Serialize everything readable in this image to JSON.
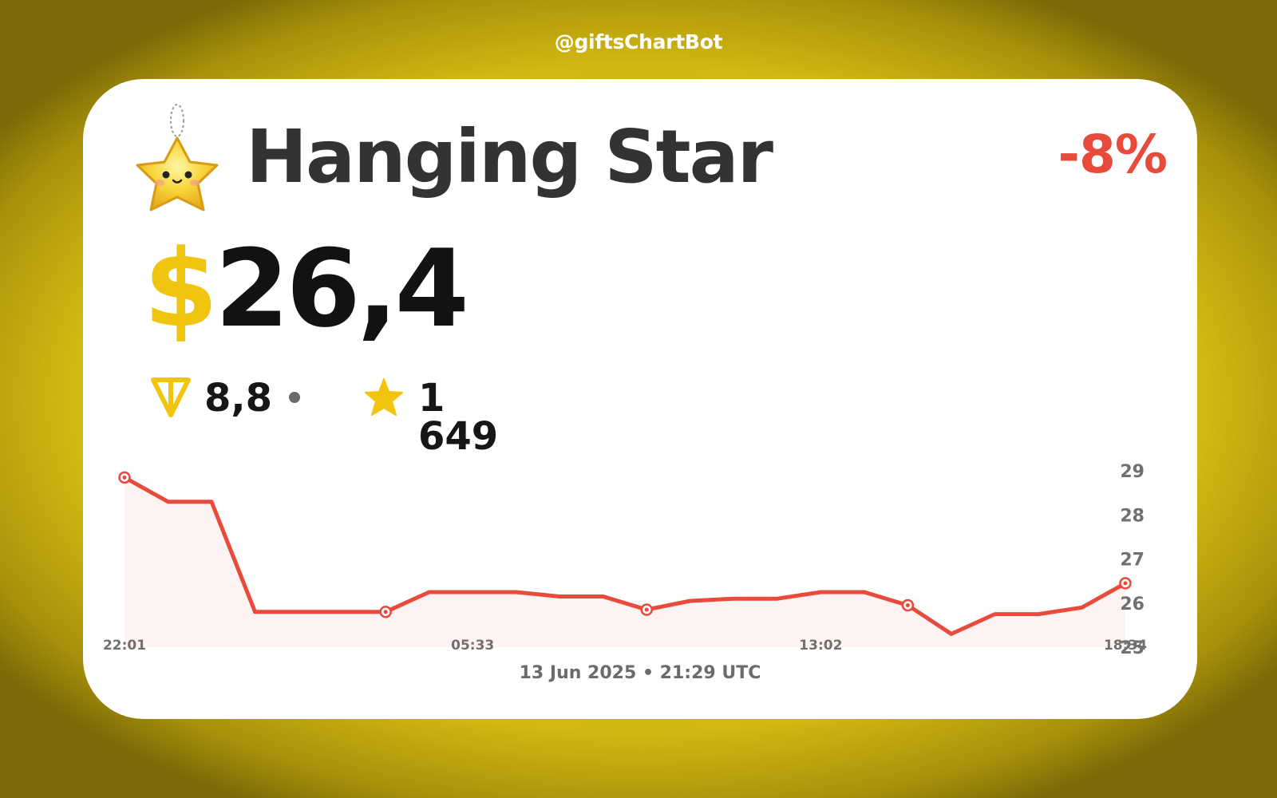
{
  "header": {
    "handle": "@giftsChartBot"
  },
  "gift": {
    "name": "Hanging Star",
    "change": "-8%",
    "icon": "hanging-star-gift-icon"
  },
  "price": {
    "currency_symbol": "$",
    "usd": "26,4",
    "ton": "8,8",
    "stars": "1 649"
  },
  "footer": {
    "date": "13 Jun 2025 • 21:29 UTC"
  },
  "colors": {
    "accent": "#f1c40f",
    "negative": "#e84a3c",
    "title": "#333336",
    "muted": "#707070",
    "fill": "#fdf3f2"
  },
  "chart_data": {
    "type": "line",
    "title": "",
    "xlabel": "",
    "ylabel": "",
    "ylim": [
      25,
      29.2
    ],
    "yticks": [
      25,
      26,
      27,
      28,
      29
    ],
    "x_tick_labels": [
      {
        "index": 0,
        "label": "22:01"
      },
      {
        "index": 8,
        "label": "05:33"
      },
      {
        "index": 16,
        "label": "13:02"
      },
      {
        "index": 23,
        "label": "18:34"
      }
    ],
    "values": [
      28.85,
      28.3,
      28.3,
      25.8,
      25.8,
      25.8,
      25.8,
      26.25,
      26.25,
      26.25,
      26.15,
      26.15,
      25.85,
      26.05,
      26.1,
      26.1,
      26.25,
      26.25,
      25.95,
      25.3,
      25.75,
      25.75,
      25.9,
      26.45
    ],
    "markers": [
      0,
      6,
      12,
      18,
      23
    ],
    "grid": false,
    "legend": "none"
  }
}
